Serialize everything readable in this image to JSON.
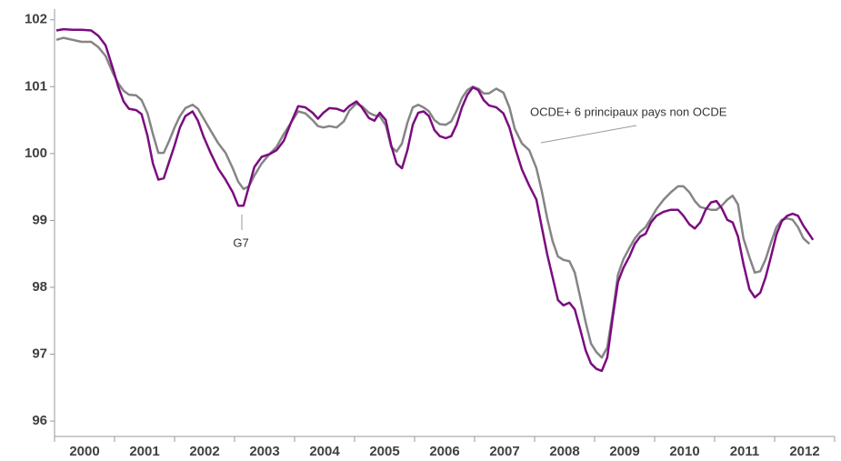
{
  "chart_data": {
    "type": "line",
    "x": [
      2000.03,
      2000.15,
      2000.3,
      2000.45,
      2000.61,
      2000.73,
      2000.85,
      2000.97,
      2001.06,
      2001.15,
      2001.24,
      2001.36,
      2001.45,
      2001.55,
      2001.64,
      2001.73,
      2001.82,
      2001.91,
      2002.0,
      2002.09,
      2002.18,
      2002.3,
      2002.39,
      2002.48,
      2002.61,
      2002.73,
      2002.85,
      2002.97,
      2003.06,
      2003.15,
      2003.24,
      2003.33,
      2003.45,
      2003.58,
      2003.7,
      2003.82,
      2003.94,
      2004.06,
      2004.18,
      2004.3,
      2004.39,
      2004.48,
      2004.58,
      2004.7,
      2004.82,
      2004.91,
      2005.03,
      2005.12,
      2005.24,
      2005.33,
      2005.42,
      2005.52,
      2005.61,
      2005.7,
      2005.79,
      2005.88,
      2005.97,
      2006.06,
      2006.15,
      2006.24,
      2006.33,
      2006.42,
      2006.52,
      2006.61,
      2006.7,
      2006.79,
      2006.88,
      2006.97,
      2007.06,
      2007.15,
      2007.24,
      2007.36,
      2007.48,
      2007.58,
      2007.67,
      2007.79,
      2007.91,
      2008.03,
      2008.12,
      2008.21,
      2008.3,
      2008.39,
      2008.48,
      2008.58,
      2008.67,
      2008.76,
      2008.85,
      2008.94,
      2009.03,
      2009.12,
      2009.21,
      2009.3,
      2009.39,
      2009.48,
      2009.58,
      2009.67,
      2009.76,
      2009.85,
      2009.94,
      2010.03,
      2010.15,
      2010.27,
      2010.39,
      2010.48,
      2010.58,
      2010.67,
      2010.76,
      2010.85,
      2010.94,
      2011.03,
      2011.12,
      2011.21,
      2011.3,
      2011.39,
      2011.48,
      2011.58,
      2011.67,
      2011.76,
      2011.85,
      2011.94,
      2012.03,
      2012.12,
      2012.21,
      2012.3,
      2012.39,
      2012.48,
      2012.58,
      2012.64
    ],
    "series": [
      {
        "name": "G7",
        "color": "#7b0c7f",
        "values": [
          101.84,
          101.86,
          101.85,
          101.85,
          101.84,
          101.76,
          101.62,
          101.28,
          101.0,
          100.78,
          100.67,
          100.65,
          100.59,
          100.26,
          99.85,
          99.61,
          99.63,
          99.88,
          100.12,
          100.39,
          100.56,
          100.63,
          100.49,
          100.26,
          99.99,
          99.77,
          99.61,
          99.42,
          99.22,
          99.22,
          99.51,
          99.8,
          99.95,
          99.99,
          100.05,
          100.19,
          100.46,
          100.71,
          100.69,
          100.61,
          100.52,
          100.61,
          100.68,
          100.67,
          100.63,
          100.71,
          100.78,
          100.69,
          100.53,
          100.49,
          100.61,
          100.5,
          100.12,
          99.85,
          99.78,
          100.05,
          100.43,
          100.61,
          100.63,
          100.56,
          100.35,
          100.26,
          100.23,
          100.26,
          100.43,
          100.69,
          100.88,
          100.99,
          100.95,
          100.8,
          100.72,
          100.69,
          100.6,
          100.39,
          100.1,
          99.76,
          99.52,
          99.31,
          98.9,
          98.49,
          98.15,
          97.81,
          97.73,
          97.77,
          97.67,
          97.37,
          97.06,
          96.86,
          96.78,
          96.75,
          96.95,
          97.54,
          98.08,
          98.29,
          98.46,
          98.65,
          98.76,
          98.8,
          98.97,
          99.07,
          99.13,
          99.16,
          99.16,
          99.07,
          98.94,
          98.88,
          98.97,
          99.16,
          99.27,
          99.29,
          99.18,
          99.01,
          98.97,
          98.76,
          98.35,
          97.97,
          97.85,
          97.92,
          98.15,
          98.46,
          98.79,
          98.99,
          99.07,
          99.1,
          99.07,
          98.92,
          98.79,
          98.71
        ]
      },
      {
        "name": "OCDE+ 6 principaux pays non OCDE",
        "color": "#858585",
        "values": [
          101.7,
          101.73,
          101.7,
          101.67,
          101.67,
          101.59,
          101.46,
          101.21,
          101.05,
          100.94,
          100.88,
          100.87,
          100.8,
          100.6,
          100.29,
          100.01,
          100.01,
          100.19,
          100.39,
          100.56,
          100.68,
          100.73,
          100.67,
          100.53,
          100.33,
          100.15,
          100.01,
          99.78,
          99.58,
          99.47,
          99.51,
          99.67,
          99.85,
          99.99,
          100.1,
          100.29,
          100.46,
          100.63,
          100.6,
          100.5,
          100.41,
          100.39,
          100.41,
          100.39,
          100.48,
          100.64,
          100.75,
          100.71,
          100.61,
          100.57,
          100.56,
          100.42,
          100.1,
          100.03,
          100.15,
          100.46,
          100.69,
          100.73,
          100.69,
          100.63,
          100.5,
          100.44,
          100.43,
          100.48,
          100.64,
          100.83,
          100.95,
          101.0,
          100.97,
          100.9,
          100.9,
          100.97,
          100.91,
          100.69,
          100.37,
          100.15,
          100.05,
          99.78,
          99.44,
          99.03,
          98.69,
          98.46,
          98.41,
          98.39,
          98.22,
          97.85,
          97.48,
          97.16,
          97.03,
          96.95,
          97.1,
          97.61,
          98.19,
          98.42,
          98.59,
          98.73,
          98.83,
          98.9,
          99.03,
          99.17,
          99.31,
          99.42,
          99.51,
          99.51,
          99.42,
          99.29,
          99.2,
          99.18,
          99.16,
          99.16,
          99.22,
          99.31,
          99.37,
          99.24,
          98.73,
          98.45,
          98.22,
          98.24,
          98.42,
          98.67,
          98.9,
          99.01,
          99.03,
          99.01,
          98.9,
          98.73,
          98.65,
          null
        ]
      }
    ],
    "xlim": [
      2000,
      2013
    ],
    "xticks": [
      {
        "value": 2000.5,
        "label": "2000"
      },
      {
        "value": 2001.5,
        "label": "2001"
      },
      {
        "value": 2002.5,
        "label": "2002"
      },
      {
        "value": 2003.5,
        "label": "2003"
      },
      {
        "value": 2004.5,
        "label": "2004"
      },
      {
        "value": 2005.5,
        "label": "2005"
      },
      {
        "value": 2006.5,
        "label": "2006"
      },
      {
        "value": 2007.5,
        "label": "2007"
      },
      {
        "value": 2008.5,
        "label": "2008"
      },
      {
        "value": 2009.5,
        "label": "2009"
      },
      {
        "value": 2010.5,
        "label": "2010"
      },
      {
        "value": 2011.5,
        "label": "2011"
      },
      {
        "value": 2012.5,
        "label": "2012"
      }
    ],
    "ylim": [
      95.77,
      102.16
    ],
    "yticks": [
      96,
      97,
      98,
      99,
      100,
      101,
      102
    ],
    "grid": false
  }
}
